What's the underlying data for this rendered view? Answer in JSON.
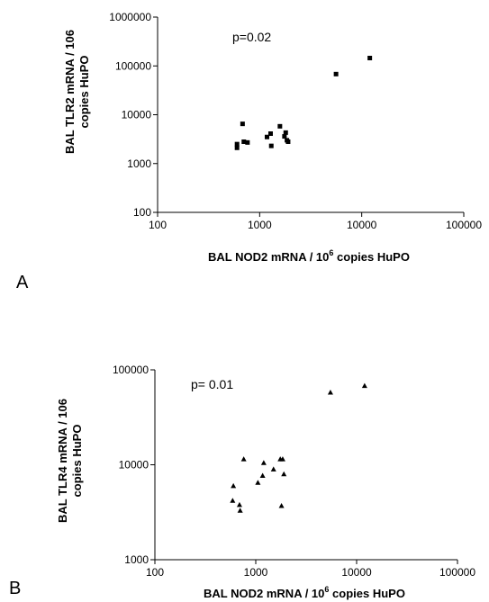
{
  "chart_data": [
    {
      "type": "scatter",
      "panel_label": "A",
      "annotation": "p=0.02",
      "ylabel_lines": [
        "BAL TLR2 mRNA / 106",
        "copies HuPO"
      ],
      "xlabel_main": "BAL NOD2 mRNA / 10",
      "xlabel_sup": "6",
      "xlabel_end": " copies HuPO",
      "x_scale": "log",
      "y_scale": "log",
      "xlim": [
        100,
        100000
      ],
      "ylim": [
        100,
        1000000
      ],
      "x_ticks": [
        100,
        1000,
        10000,
        100000
      ],
      "x_tick_labels": [
        "100",
        "1000",
        "10000",
        "100000"
      ],
      "y_ticks": [
        100,
        1000,
        10000,
        100000,
        1000000
      ],
      "y_tick_labels": [
        "100",
        "1000",
        "10000",
        "100000",
        "1000000"
      ],
      "marker": "square",
      "grid": false,
      "points": [
        {
          "x": 600,
          "y": 2100
        },
        {
          "x": 600,
          "y": 2500
        },
        {
          "x": 680,
          "y": 6500
        },
        {
          "x": 700,
          "y": 2800
        },
        {
          "x": 760,
          "y": 2700
        },
        {
          "x": 1180,
          "y": 3500
        },
        {
          "x": 1280,
          "y": 4100
        },
        {
          "x": 1300,
          "y": 2300
        },
        {
          "x": 1580,
          "y": 5800
        },
        {
          "x": 1750,
          "y": 3600
        },
        {
          "x": 1800,
          "y": 4300
        },
        {
          "x": 1850,
          "y": 3000
        },
        {
          "x": 1900,
          "y": 2800
        },
        {
          "x": 5600,
          "y": 68000
        },
        {
          "x": 12000,
          "y": 145000
        }
      ]
    },
    {
      "type": "scatter",
      "panel_label": "B",
      "annotation": "p= 0.01",
      "ylabel_lines": [
        "BAL TLR4 mRNA / 106",
        "copies HuPO"
      ],
      "xlabel_main": "BAL NOD2 mRNA / 10",
      "xlabel_sup": "6",
      "xlabel_end": " copies HuPO",
      "x_scale": "log",
      "y_scale": "log",
      "xlim": [
        100,
        100000
      ],
      "ylim": [
        1000,
        100000
      ],
      "x_ticks": [
        100,
        1000,
        10000,
        100000
      ],
      "x_tick_labels": [
        "100",
        "1000",
        "10000",
        "100000"
      ],
      "y_ticks": [
        1000,
        10000,
        100000
      ],
      "y_tick_labels": [
        "1000",
        "10000",
        "100000"
      ],
      "marker": "triangle",
      "grid": false,
      "points": [
        {
          "x": 590,
          "y": 4200
        },
        {
          "x": 600,
          "y": 6000
        },
        {
          "x": 690,
          "y": 3800
        },
        {
          "x": 700,
          "y": 3300
        },
        {
          "x": 760,
          "y": 11500
        },
        {
          "x": 1050,
          "y": 6500
        },
        {
          "x": 1170,
          "y": 7700
        },
        {
          "x": 1200,
          "y": 10500
        },
        {
          "x": 1500,
          "y": 9000
        },
        {
          "x": 1750,
          "y": 11500
        },
        {
          "x": 1800,
          "y": 3700
        },
        {
          "x": 1850,
          "y": 11500
        },
        {
          "x": 1900,
          "y": 8000
        },
        {
          "x": 5500,
          "y": 58000
        },
        {
          "x": 12000,
          "y": 68000
        }
      ]
    }
  ]
}
